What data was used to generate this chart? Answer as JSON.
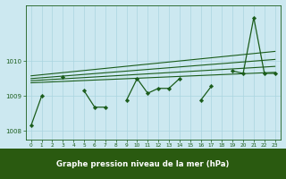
{
  "x": [
    0,
    1,
    2,
    3,
    4,
    5,
    6,
    7,
    8,
    9,
    10,
    11,
    12,
    13,
    14,
    15,
    16,
    17,
    18,
    19,
    20,
    21,
    22,
    23
  ],
  "y_main": [
    1008.15,
    1009.0,
    null,
    1009.55,
    null,
    1009.15,
    1008.68,
    1008.68,
    null,
    1008.88,
    1009.5,
    1009.08,
    1009.22,
    1009.22,
    1009.5,
    null,
    1008.88,
    1009.28,
    null,
    1009.72,
    1009.65,
    1011.25,
    1009.65,
    1009.65
  ],
  "trend_lines": [
    [
      1009.38,
      1009.68
    ],
    [
      1009.44,
      1009.85
    ],
    [
      1009.5,
      1010.05
    ],
    [
      1009.58,
      1010.28
    ]
  ],
  "ylim": [
    1007.75,
    1011.6
  ],
  "yticks": [
    1008,
    1009,
    1010
  ],
  "xticks": [
    0,
    1,
    2,
    3,
    4,
    5,
    6,
    7,
    8,
    9,
    10,
    11,
    12,
    13,
    14,
    15,
    16,
    17,
    18,
    19,
    20,
    21,
    22,
    23
  ],
  "xlabel": "Graphe pression niveau de la mer (hPa)",
  "line_color": "#1a5c1a",
  "bg_color": "#cce8f0",
  "grid_color": "#aad4e0",
  "tick_color": "#1a5c1a",
  "bottom_bg": "#2a5a10",
  "bottom_text_color": "#ffffff",
  "xlim": [
    -0.5,
    23.5
  ]
}
